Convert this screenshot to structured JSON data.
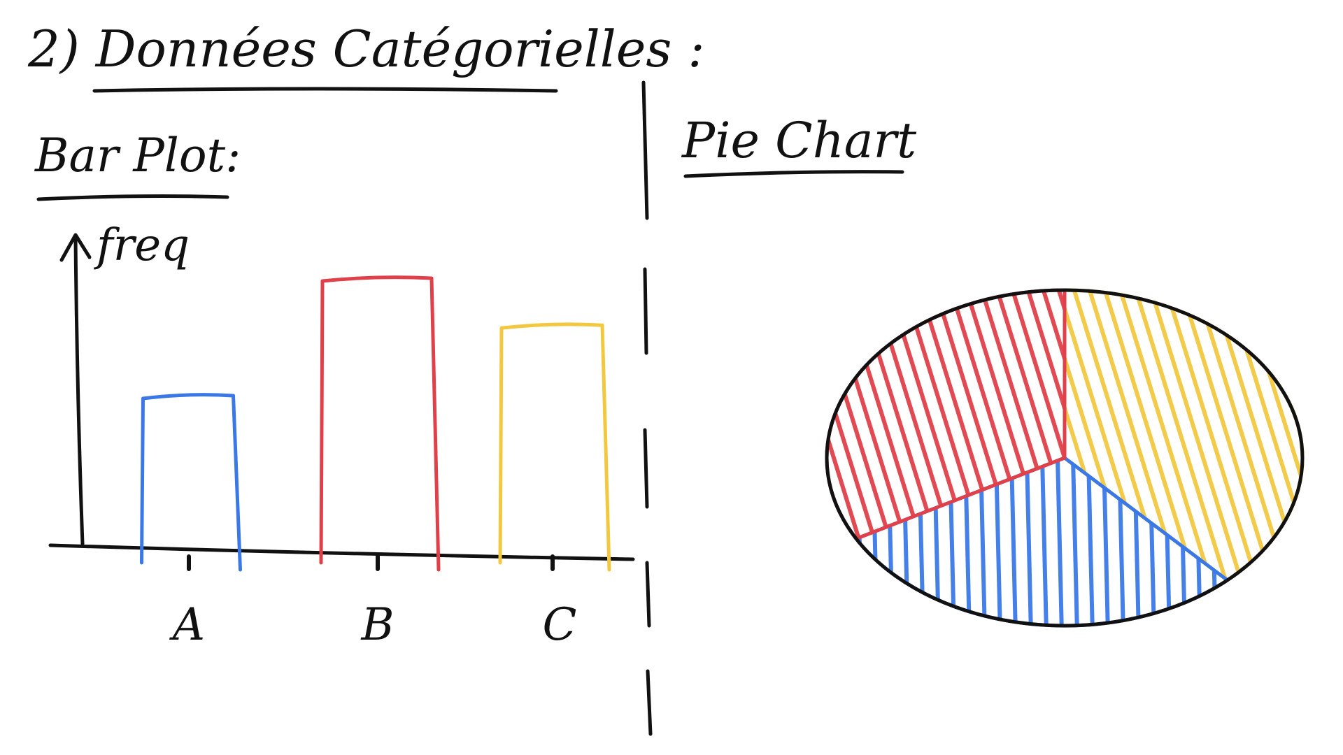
{
  "header": {
    "title": "2) Données Catégorielles :"
  },
  "chart_data": [
    {
      "type": "bar",
      "title": "Bar Plot:",
      "ylabel": "freq",
      "xlabel": "",
      "categories": [
        "A",
        "B",
        "C"
      ],
      "values": [
        4,
        7,
        5.8
      ],
      "ylim": [
        0,
        10
      ],
      "colors": [
        "#3b78e7",
        "#e0404a",
        "#f2c840"
      ],
      "grid": false
    },
    {
      "type": "pie",
      "title": "Pie Chart",
      "slices": [
        {
          "category": "red",
          "value": 33,
          "color": "#e0404a"
        },
        {
          "category": "yellow",
          "value": 38,
          "color": "#f2c840"
        },
        {
          "category": "blue",
          "value": 29,
          "color": "#3b78e7"
        }
      ]
    }
  ]
}
